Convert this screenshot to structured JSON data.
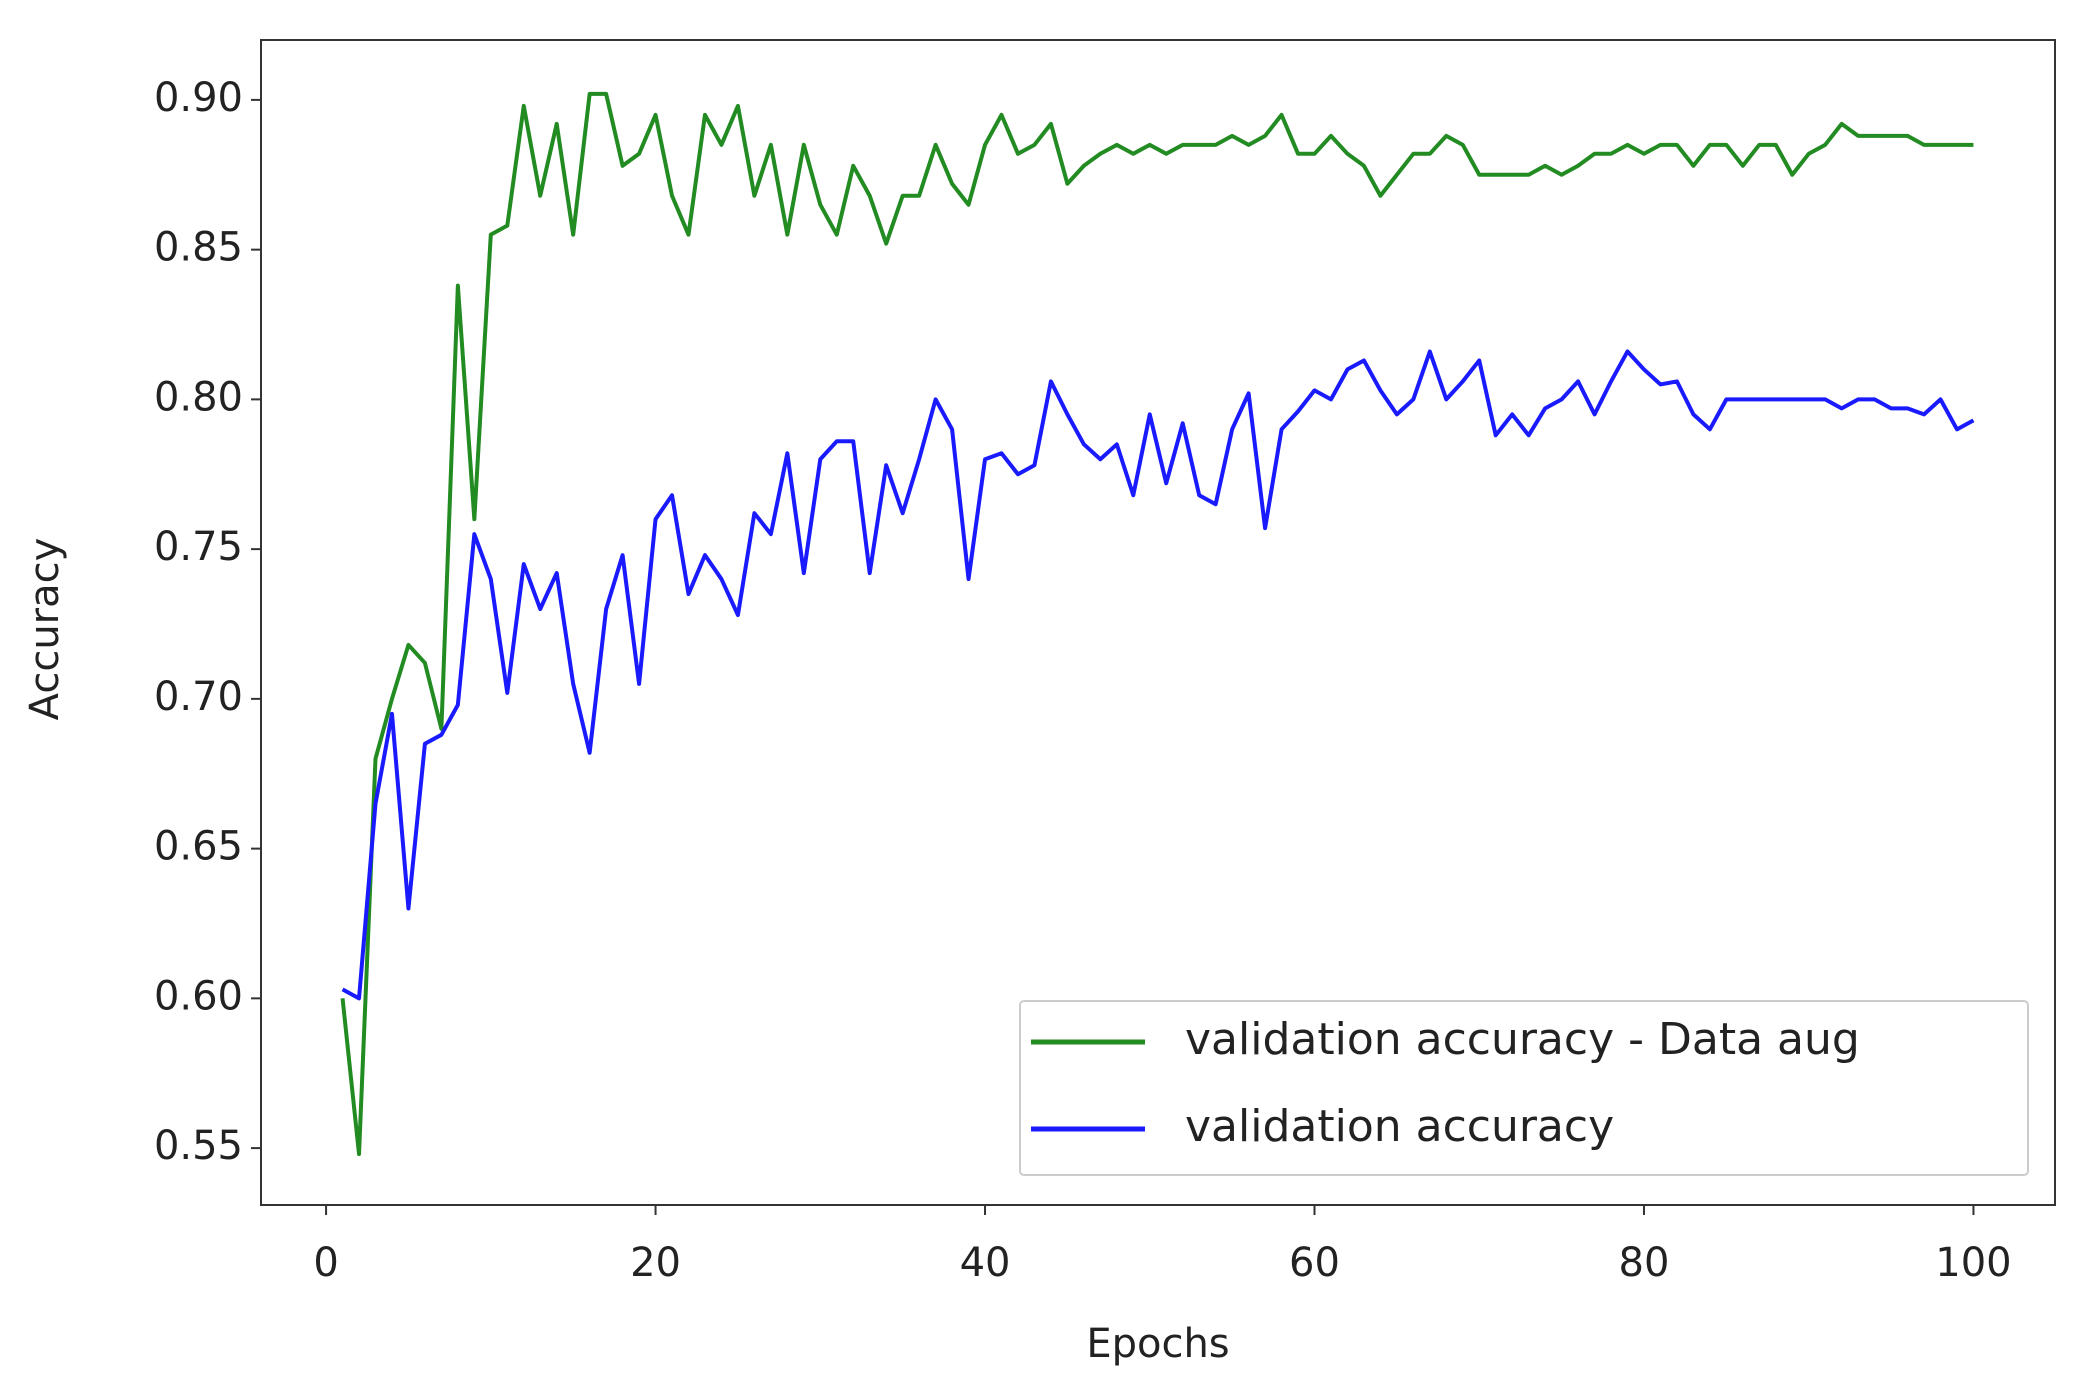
{
  "chart_data": {
    "type": "line",
    "xlabel": "Epochs",
    "ylabel": "Accuracy",
    "x": [
      1,
      2,
      3,
      4,
      5,
      6,
      7,
      8,
      9,
      10,
      11,
      12,
      13,
      14,
      15,
      16,
      17,
      18,
      19,
      20,
      21,
      22,
      23,
      24,
      25,
      26,
      27,
      28,
      29,
      30,
      31,
      32,
      33,
      34,
      35,
      36,
      37,
      38,
      39,
      40,
      41,
      42,
      43,
      44,
      45,
      46,
      47,
      48,
      49,
      50,
      51,
      52,
      53,
      54,
      55,
      56,
      57,
      58,
      59,
      60,
      61,
      62,
      63,
      64,
      65,
      66,
      67,
      68,
      69,
      70,
      71,
      72,
      73,
      74,
      75,
      76,
      77,
      78,
      79,
      80,
      81,
      82,
      83,
      84,
      85,
      86,
      87,
      88,
      89,
      90,
      91,
      92,
      93,
      94,
      95,
      96,
      97,
      98,
      99,
      100
    ],
    "series": [
      {
        "name": "validation accuracy - Data aug",
        "color": "#228b22",
        "values": [
          0.6,
          0.548,
          0.68,
          0.7,
          0.718,
          0.712,
          0.69,
          0.838,
          0.76,
          0.855,
          0.858,
          0.898,
          0.868,
          0.892,
          0.855,
          0.902,
          0.902,
          0.878,
          0.882,
          0.895,
          0.868,
          0.855,
          0.895,
          0.885,
          0.898,
          0.868,
          0.885,
          0.855,
          0.885,
          0.865,
          0.855,
          0.878,
          0.868,
          0.852,
          0.868,
          0.868,
          0.885,
          0.872,
          0.865,
          0.885,
          0.895,
          0.882,
          0.885,
          0.892,
          0.872,
          0.878,
          0.882,
          0.885,
          0.882,
          0.885,
          0.882,
          0.885,
          0.885,
          0.885,
          0.888,
          0.885,
          0.888,
          0.895,
          0.882,
          0.882,
          0.888,
          0.882,
          0.878,
          0.868,
          0.875,
          0.882,
          0.882,
          0.888,
          0.885,
          0.875,
          0.875,
          0.875,
          0.875,
          0.878,
          0.875,
          0.878,
          0.882,
          0.882,
          0.885,
          0.882,
          0.885,
          0.885,
          0.878,
          0.885,
          0.885,
          0.878,
          0.885,
          0.885,
          0.875,
          0.882,
          0.885,
          0.892,
          0.888,
          0.888,
          0.888,
          0.888,
          0.885,
          0.885,
          0.885,
          0.885
        ]
      },
      {
        "name": "validation accuracy",
        "color": "#1a1aff",
        "values": [
          0.603,
          0.6,
          0.665,
          0.695,
          0.63,
          0.685,
          0.688,
          0.698,
          0.755,
          0.74,
          0.702,
          0.745,
          0.73,
          0.742,
          0.705,
          0.682,
          0.73,
          0.748,
          0.705,
          0.76,
          0.768,
          0.735,
          0.748,
          0.74,
          0.728,
          0.762,
          0.755,
          0.782,
          0.742,
          0.78,
          0.786,
          0.786,
          0.742,
          0.778,
          0.762,
          0.78,
          0.8,
          0.79,
          0.74,
          0.78,
          0.782,
          0.775,
          0.778,
          0.806,
          0.795,
          0.785,
          0.78,
          0.785,
          0.768,
          0.795,
          0.772,
          0.792,
          0.768,
          0.765,
          0.79,
          0.802,
          0.757,
          0.79,
          0.796,
          0.803,
          0.8,
          0.81,
          0.813,
          0.803,
          0.795,
          0.8,
          0.816,
          0.8,
          0.806,
          0.813,
          0.788,
          0.795,
          0.788,
          0.797,
          0.8,
          0.806,
          0.795,
          0.806,
          0.816,
          0.81,
          0.805,
          0.806,
          0.795,
          0.79,
          0.8,
          0.8,
          0.8,
          0.8,
          0.8,
          0.8,
          0.8,
          0.797,
          0.8,
          0.8,
          0.797,
          0.797,
          0.795,
          0.8,
          0.79,
          0.793
        ]
      }
    ],
    "xlim": [
      -3.95,
      104.95
    ],
    "xticks": [
      0,
      20,
      40,
      60,
      80,
      100
    ],
    "ylim": [
      0.531,
      0.92
    ],
    "yticks": [
      0.55,
      {
        "value": 0.6,
        "label": "0.60"
      },
      0.65,
      {
        "value": 0.7,
        "label": "0.70"
      },
      0.75,
      {
        "value": 0.8,
        "label": "0.80"
      },
      0.85,
      {
        "value": 0.9,
        "label": "0.90"
      }
    ],
    "legend": "lower right",
    "grid": false
  }
}
